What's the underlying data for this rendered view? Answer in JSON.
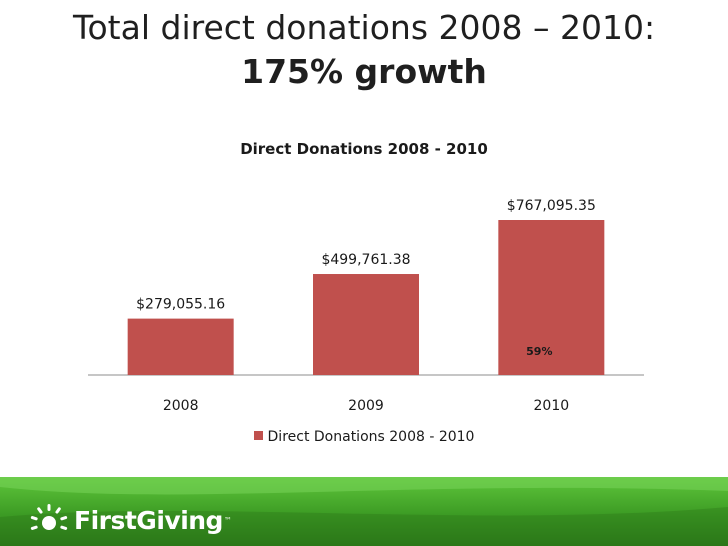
{
  "slide": {
    "title_line1": "Total direct donations 2008 – 2010:",
    "title_line2": "175% growth"
  },
  "chart_data": {
    "type": "bar",
    "title": "Direct Donations 2008 - 2010",
    "categories": [
      "2008",
      "2009",
      "2010"
    ],
    "series": [
      {
        "name": "Direct Donations 2008 - 2010",
        "values": [
          279055.16,
          499761.38,
          767095.35
        ],
        "labels": [
          "$279,055.16",
          "$499,761.38",
          "$767,095.35"
        ],
        "color": "#c0504d"
      }
    ],
    "ylim": [
      0,
      850000
    ],
    "grid": false,
    "legend_position": "bottom",
    "annotations": [
      {
        "category": "2010",
        "text": "59%"
      }
    ]
  },
  "footer": {
    "logo_text": "FirstGiving",
    "logo_tm": "™",
    "logo_icon": "sun-icon",
    "bar_color": "#3c9b24"
  }
}
